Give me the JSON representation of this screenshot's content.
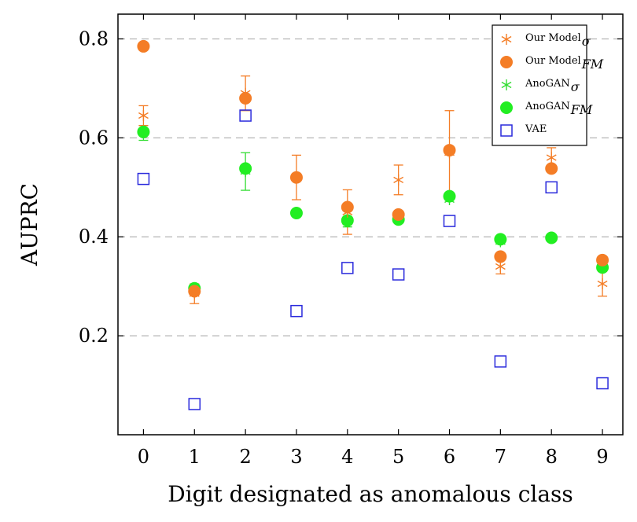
{
  "chart_data": {
    "type": "scatter",
    "title": "",
    "xlabel": "Digit designated as anomalous class",
    "ylabel": "AUPRC",
    "xlim": [
      -0.5,
      9.4
    ],
    "ylim": [
      0.0,
      0.85
    ],
    "x_ticks": [
      0,
      1,
      2,
      3,
      4,
      5,
      6,
      7,
      8,
      9
    ],
    "y_ticks": [
      0.2,
      0.4,
      0.6,
      0.8
    ],
    "y_tick_labels": [
      "0.2",
      "0.4",
      "0.6",
      "0.8"
    ],
    "grid": "horizontal dashed",
    "legend_position": "top-right",
    "series": [
      {
        "name": "Our Model",
        "name_sub": "σ",
        "color": "#f47d26",
        "marker": "star",
        "x": [
          0,
          1,
          2,
          3,
          4,
          5,
          6,
          7,
          8,
          9
        ],
        "y": [
          0.645,
          0.285,
          0.69,
          0.52,
          0.45,
          0.515,
          0.57,
          0.34,
          0.56,
          0.305
        ],
        "err": [
          0.02,
          0.02,
          0.035,
          0.045,
          0.045,
          0.03,
          0.085,
          0.015,
          0.02,
          0.025
        ]
      },
      {
        "name": "Our Model",
        "name_sub": "FM",
        "color": "#f47d26",
        "marker": "circle",
        "x": [
          0,
          1,
          2,
          3,
          4,
          5,
          6,
          7,
          8,
          9
        ],
        "y": [
          0.785,
          0.29,
          0.68,
          0.52,
          0.46,
          0.445,
          0.575,
          0.36,
          0.538,
          0.353
        ],
        "err": [
          0,
          0,
          0,
          0,
          0,
          0,
          0,
          0,
          0,
          0
        ]
      },
      {
        "name": "AnoGAN",
        "name_sub": "σ",
        "color": "#33dd33",
        "marker": "star",
        "x": [
          0,
          1,
          2,
          3,
          4,
          5,
          6,
          7,
          8,
          9
        ],
        "y": [
          0.61,
          0.295,
          0.532,
          0.448,
          0.43,
          0.435,
          0.475,
          0.39,
          0.398,
          0.34
        ],
        "err": [
          0.015,
          0,
          0.038,
          0,
          0.01,
          0,
          0,
          0,
          0,
          0
        ]
      },
      {
        "name": "AnoGAN",
        "name_sub": "FM",
        "color": "#22ee22",
        "marker": "circle",
        "x": [
          0,
          1,
          2,
          3,
          4,
          5,
          6,
          7,
          8,
          9
        ],
        "y": [
          0.612,
          0.296,
          0.538,
          0.448,
          0.433,
          0.435,
          0.482,
          0.395,
          0.398,
          0.338
        ],
        "err": [
          0,
          0,
          0,
          0,
          0,
          0,
          0,
          0,
          0,
          0
        ]
      },
      {
        "name": "VAE",
        "name_sub": "",
        "color": "#2a2adc",
        "marker": "square",
        "x": [
          0,
          1,
          2,
          3,
          4,
          5,
          6,
          7,
          8,
          9
        ],
        "y": [
          0.517,
          0.062,
          0.645,
          0.25,
          0.337,
          0.324,
          0.432,
          0.148,
          0.5,
          0.104
        ],
        "err": [
          0,
          0,
          0,
          0,
          0,
          0,
          0,
          0,
          0,
          0
        ]
      }
    ]
  }
}
